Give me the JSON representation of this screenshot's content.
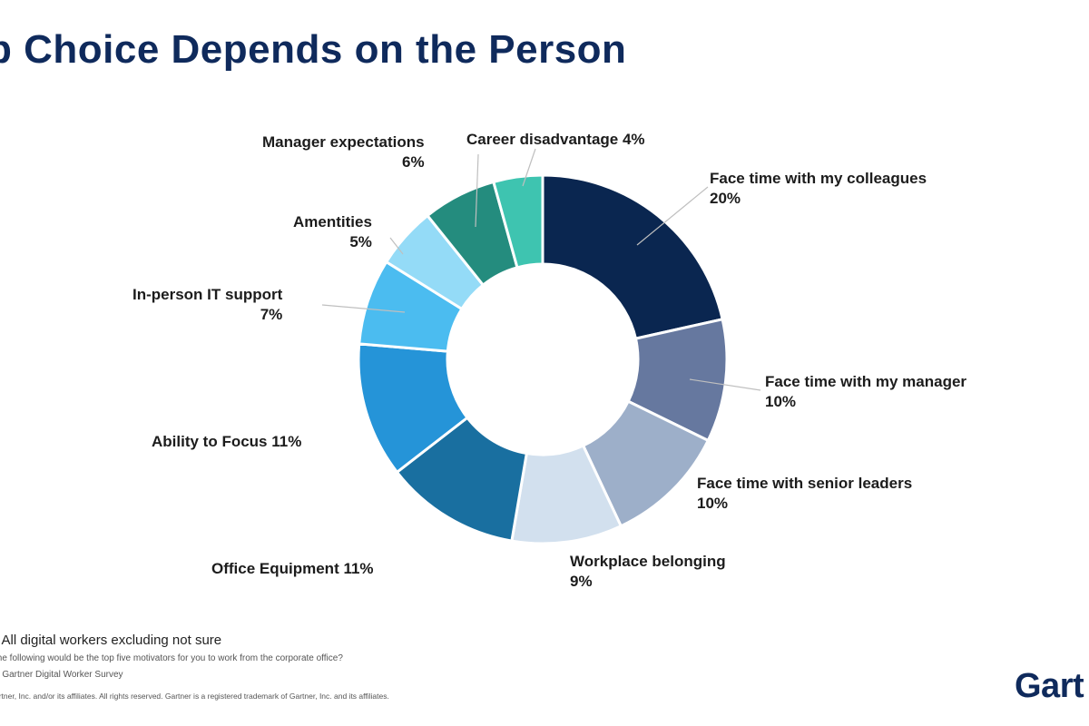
{
  "title": "p Choice Depends on the Person",
  "chart_data": {
    "type": "pie",
    "donut": true,
    "slices": [
      {
        "label": "Face time with my colleagues",
        "value": 20,
        "value_label": "20%",
        "color": "#0a2650"
      },
      {
        "label": "Face time with my manager",
        "value": 10,
        "value_label": "10%",
        "color": "#66789f"
      },
      {
        "label": "Face time with senior leaders",
        "value": 10,
        "value_label": "10%",
        "color": "#9dafc9"
      },
      {
        "label": "Workplace belonging",
        "value": 9,
        "value_label": "9%",
        "color": "#d2e0ee"
      },
      {
        "label": "Office Equipment 11%",
        "value": 11,
        "value_label": "",
        "color": "#196fa0"
      },
      {
        "label": "Ability to Focus 11%",
        "value": 11,
        "value_label": "",
        "color": "#2594d8"
      },
      {
        "label": "In-person IT support",
        "value": 7,
        "value_label": "7%",
        "color": "#4bbcf0"
      },
      {
        "label": "Amentities",
        "value": 5,
        "value_label": "5%",
        "color": "#94dbf7"
      },
      {
        "label": "Manager expectations",
        "value": 6,
        "value_label": "6%",
        "color": "#248c7e"
      },
      {
        "label": "Career disadvantage 4%",
        "value": 4,
        "value_label": "",
        "color": "#3ec4b0"
      }
    ]
  },
  "footer": {
    "base": "; All digital workers excluding not sure",
    "question": "the following would be the top five motivators for you to work from the corporate office?",
    "source": "2 Gartner Digital Worker Survey",
    "copyright": "artner, Inc. and/or its affiliates. All rights reserved. Gartner is a registered trademark of Gartner, Inc. and its affiliates."
  },
  "logo_text": "Gart"
}
